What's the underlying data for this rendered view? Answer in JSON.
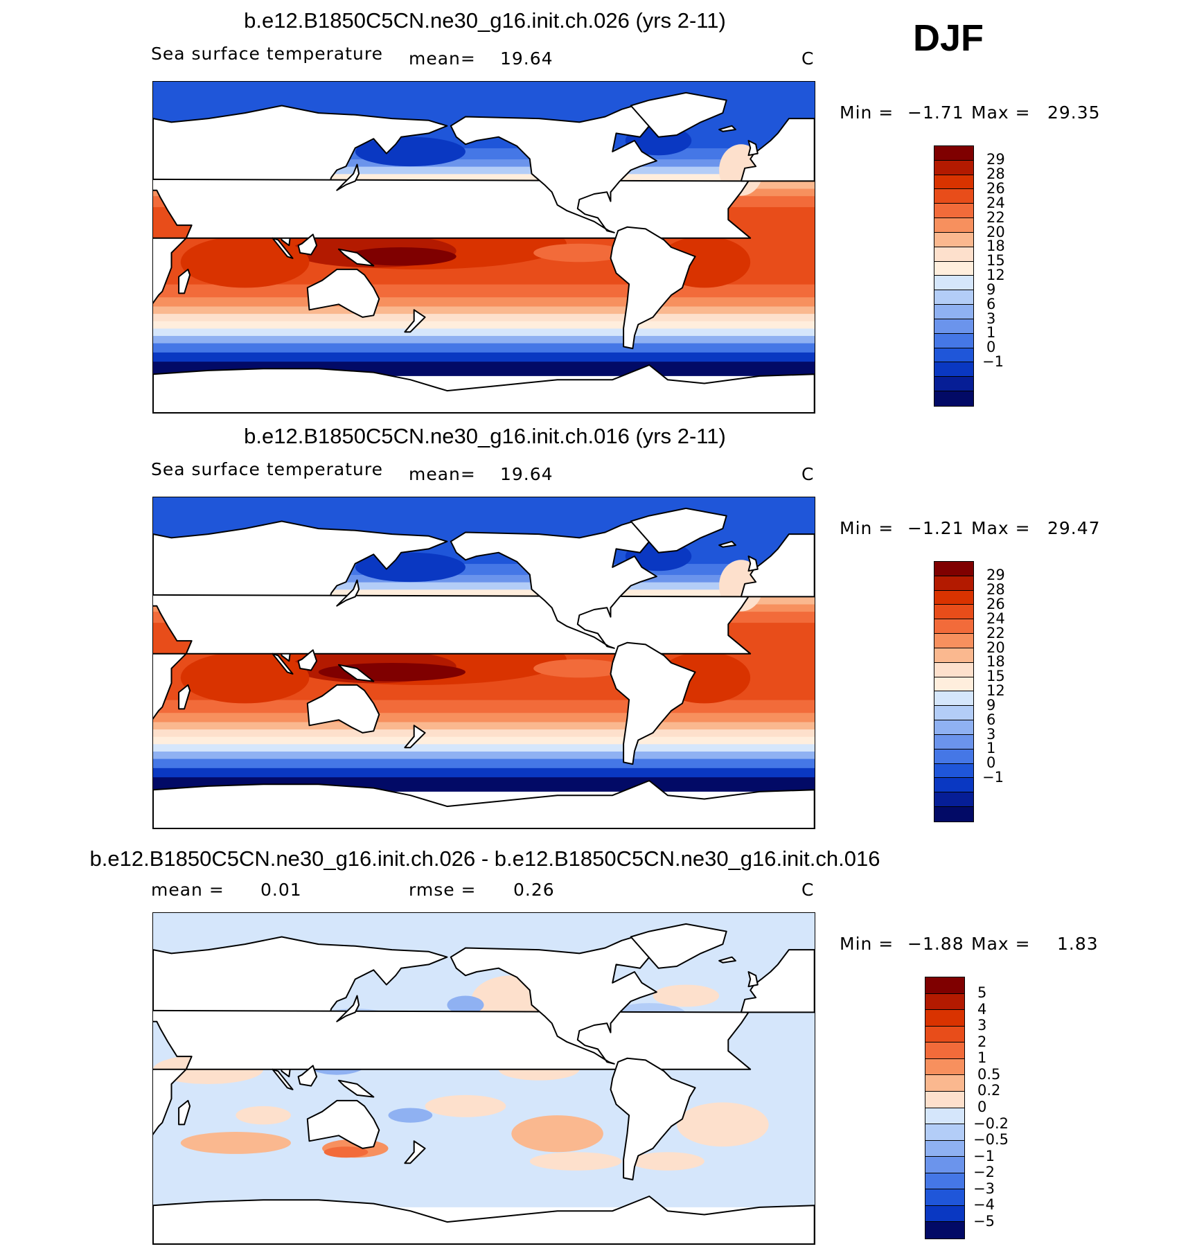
{
  "season": "DJF",
  "panels": [
    {
      "title": "b.e12.B1850C5CN.ne30_g16.init.ch.026 (yrs 2-11)",
      "variable": "Sea surface temperature",
      "stat1_label": "mean=",
      "stat1_value": "19.64",
      "stat2_label": "",
      "stat2_value": "",
      "units": "C",
      "min_label": "Min =",
      "min_value": "−1.71",
      "max_label": "Max =",
      "max_value": "29.35",
      "colorbar_labels": [
        "29",
        "28",
        "26",
        "24",
        "22",
        "20",
        "18",
        "15",
        "12",
        "9",
        "6",
        "3",
        "1",
        "0",
        "−1"
      ]
    },
    {
      "title": "b.e12.B1850C5CN.ne30_g16.init.ch.016 (yrs 2-11)",
      "variable": "Sea surface temperature",
      "stat1_label": "mean=",
      "stat1_value": "19.64",
      "stat2_label": "",
      "stat2_value": "",
      "units": "C",
      "min_label": "Min =",
      "min_value": "−1.21",
      "max_label": "Max =",
      "max_value": "29.47",
      "colorbar_labels": [
        "29",
        "28",
        "26",
        "24",
        "22",
        "20",
        "18",
        "15",
        "12",
        "9",
        "6",
        "3",
        "1",
        "0",
        "−1"
      ]
    },
    {
      "title": "b.e12.B1850C5CN.ne30_g16.init.ch.026 - b.e12.B1850C5CN.ne30_g16.init.ch.016",
      "variable": "",
      "stat1_label": "mean =",
      "stat1_value": "0.01",
      "stat2_label": "rmse =",
      "stat2_value": "0.26",
      "units": "C",
      "min_label": "Min =",
      "min_value": "−1.88",
      "max_label": "Max =",
      "max_value": "1.83",
      "colorbar_labels": [
        "5",
        "4",
        "3",
        "2",
        "1",
        "0.5",
        "0.2",
        "0",
        "−0.2",
        "−0.5",
        "−1",
        "−2",
        "−3",
        "−4",
        "−5"
      ]
    }
  ],
  "colors": {
    "sst_scale": [
      "#7f0000",
      "#b31a00",
      "#d93300",
      "#e84d1a",
      "#f26b3a",
      "#f7905e",
      "#fab88f",
      "#fde0cc",
      "#ffeedd",
      "#d5e6fb",
      "#b3cdf7",
      "#8fb1f2",
      "#6b94ec",
      "#4577e6",
      "#1f56d9",
      "#0a38c2",
      "#061e96",
      "#020a66"
    ],
    "diff_scale": [
      "#7f0000",
      "#b31a00",
      "#d93300",
      "#e84d1a",
      "#f26b3a",
      "#f7905e",
      "#fab88f",
      "#fde0cc",
      "#d5e6fb",
      "#b3cdf7",
      "#8fb1f2",
      "#6b94ec",
      "#4577e6",
      "#1f56d9",
      "#0a38c2",
      "#020a66"
    ],
    "land": "#ffffff",
    "coastline": "#000000"
  }
}
